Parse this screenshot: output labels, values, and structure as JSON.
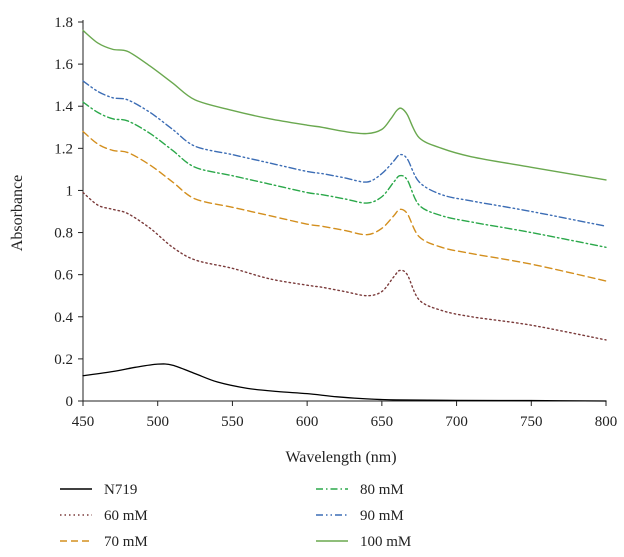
{
  "chart_data": {
    "type": "line",
    "title": "",
    "xlabel": "Wavelength (nm)",
    "ylabel": "Absorbance",
    "xlim": [
      450,
      800
    ],
    "ylim": [
      0,
      1.8
    ],
    "x_ticks": [
      "450",
      "500",
      "550",
      "600",
      "650",
      "700",
      "750",
      "800"
    ],
    "y_ticks": [
      "0",
      "0.2",
      "0.4",
      "0.6",
      "0.8",
      "1",
      "1.2",
      "1.4",
      "1.6",
      "1.8"
    ],
    "grid": false,
    "legend_position": "bottom",
    "series": [
      {
        "name": "N719",
        "color": "#000000",
        "dash": "solid",
        "points": [
          [
            450,
            0.12
          ],
          [
            470,
            0.14
          ],
          [
            485,
            0.16
          ],
          [
            500,
            0.175
          ],
          [
            510,
            0.17
          ],
          [
            525,
            0.13
          ],
          [
            540,
            0.09
          ],
          [
            560,
            0.06
          ],
          [
            580,
            0.045
          ],
          [
            600,
            0.035
          ],
          [
            620,
            0.02
          ],
          [
            640,
            0.01
          ],
          [
            660,
            0.005
          ],
          [
            700,
            0.003
          ],
          [
            750,
            0.002
          ],
          [
            800,
            0.0
          ]
        ]
      },
      {
        "name": "60 mM",
        "color": "#7b3b3b",
        "dash": "dotted",
        "points": [
          [
            450,
            0.99
          ],
          [
            460,
            0.93
          ],
          [
            470,
            0.91
          ],
          [
            480,
            0.89
          ],
          [
            495,
            0.82
          ],
          [
            510,
            0.73
          ],
          [
            525,
            0.67
          ],
          [
            550,
            0.63
          ],
          [
            575,
            0.58
          ],
          [
            600,
            0.55
          ],
          [
            610,
            0.54
          ],
          [
            625,
            0.52
          ],
          [
            640,
            0.5
          ],
          [
            650,
            0.52
          ],
          [
            658,
            0.59
          ],
          [
            662,
            0.62
          ],
          [
            667,
            0.6
          ],
          [
            675,
            0.48
          ],
          [
            690,
            0.43
          ],
          [
            710,
            0.4
          ],
          [
            750,
            0.36
          ],
          [
            800,
            0.29
          ]
        ]
      },
      {
        "name": "70 mM",
        "color": "#d38f1e",
        "dash": "dashed",
        "points": [
          [
            450,
            1.28
          ],
          [
            460,
            1.22
          ],
          [
            470,
            1.19
          ],
          [
            480,
            1.18
          ],
          [
            495,
            1.12
          ],
          [
            510,
            1.04
          ],
          [
            525,
            0.96
          ],
          [
            550,
            0.92
          ],
          [
            575,
            0.88
          ],
          [
            600,
            0.84
          ],
          [
            610,
            0.83
          ],
          [
            625,
            0.81
          ],
          [
            640,
            0.79
          ],
          [
            650,
            0.82
          ],
          [
            658,
            0.88
          ],
          [
            662,
            0.91
          ],
          [
            667,
            0.89
          ],
          [
            675,
            0.78
          ],
          [
            690,
            0.73
          ],
          [
            710,
            0.7
          ],
          [
            750,
            0.65
          ],
          [
            800,
            0.57
          ]
        ]
      },
      {
        "name": "80 mM",
        "color": "#2ba84a",
        "dash": "dashdot",
        "points": [
          [
            450,
            1.42
          ],
          [
            460,
            1.37
          ],
          [
            470,
            1.34
          ],
          [
            480,
            1.33
          ],
          [
            495,
            1.27
          ],
          [
            510,
            1.19
          ],
          [
            525,
            1.11
          ],
          [
            550,
            1.07
          ],
          [
            575,
            1.03
          ],
          [
            600,
            0.99
          ],
          [
            610,
            0.98
          ],
          [
            625,
            0.96
          ],
          [
            640,
            0.94
          ],
          [
            650,
            0.97
          ],
          [
            658,
            1.04
          ],
          [
            662,
            1.07
          ],
          [
            667,
            1.05
          ],
          [
            675,
            0.93
          ],
          [
            690,
            0.88
          ],
          [
            710,
            0.85
          ],
          [
            750,
            0.8
          ],
          [
            800,
            0.73
          ]
        ]
      },
      {
        "name": "90 mM",
        "color": "#3c6db5",
        "dash": "dashdotdot",
        "points": [
          [
            450,
            1.52
          ],
          [
            460,
            1.47
          ],
          [
            470,
            1.44
          ],
          [
            480,
            1.43
          ],
          [
            495,
            1.37
          ],
          [
            510,
            1.29
          ],
          [
            525,
            1.21
          ],
          [
            550,
            1.17
          ],
          [
            575,
            1.13
          ],
          [
            600,
            1.09
          ],
          [
            610,
            1.08
          ],
          [
            625,
            1.06
          ],
          [
            640,
            1.04
          ],
          [
            650,
            1.08
          ],
          [
            658,
            1.14
          ],
          [
            662,
            1.17
          ],
          [
            667,
            1.15
          ],
          [
            675,
            1.04
          ],
          [
            690,
            0.98
          ],
          [
            710,
            0.95
          ],
          [
            750,
            0.9
          ],
          [
            800,
            0.83
          ]
        ]
      },
      {
        "name": "100 mM",
        "color": "#6aa84f",
        "dash": "solid",
        "points": [
          [
            450,
            1.76
          ],
          [
            460,
            1.7
          ],
          [
            470,
            1.67
          ],
          [
            480,
            1.66
          ],
          [
            495,
            1.59
          ],
          [
            510,
            1.51
          ],
          [
            525,
            1.43
          ],
          [
            550,
            1.38
          ],
          [
            575,
            1.34
          ],
          [
            600,
            1.31
          ],
          [
            610,
            1.3
          ],
          [
            625,
            1.28
          ],
          [
            640,
            1.27
          ],
          [
            650,
            1.29
          ],
          [
            656,
            1.34
          ],
          [
            660,
            1.38
          ],
          [
            663,
            1.39
          ],
          [
            667,
            1.36
          ],
          [
            675,
            1.25
          ],
          [
            690,
            1.2
          ],
          [
            710,
            1.16
          ],
          [
            750,
            1.11
          ],
          [
            800,
            1.05
          ]
        ]
      }
    ]
  }
}
